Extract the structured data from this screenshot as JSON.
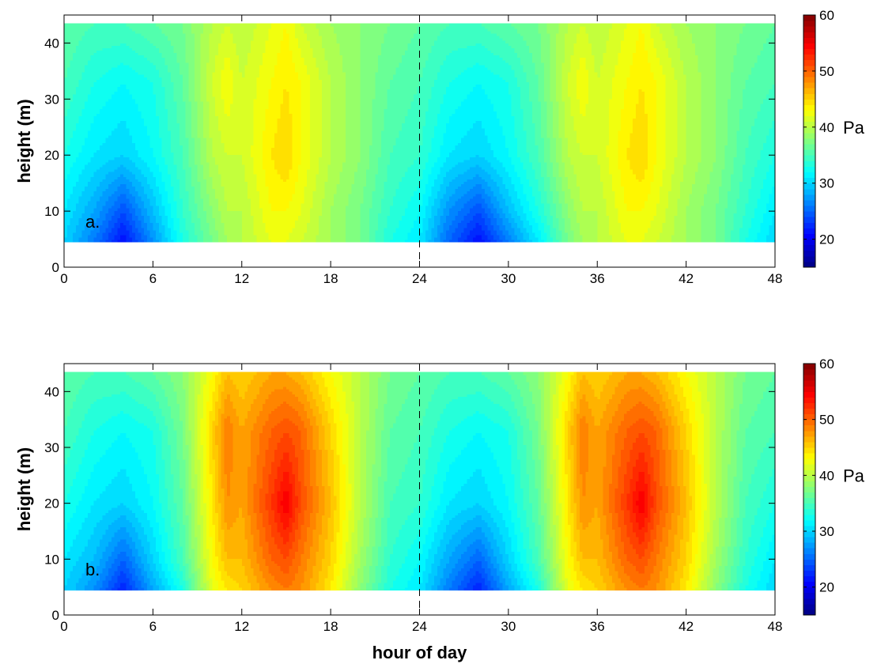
{
  "chart_data": [
    {
      "type": "heatmap",
      "panel_label": "a.",
      "ylabel": "height (m)",
      "xlabel": "",
      "xlim": [
        0,
        48
      ],
      "ylim": [
        0,
        45
      ],
      "xticks": [
        0,
        6,
        12,
        18,
        24,
        30,
        36,
        42,
        48
      ],
      "yticks": [
        0,
        10,
        20,
        30,
        40
      ],
      "x_hours": [
        0,
        2,
        4,
        6,
        8,
        10,
        11,
        12,
        14,
        15,
        16,
        18,
        20,
        22,
        24,
        26,
        28,
        30,
        32,
        34,
        35,
        36,
        38,
        39,
        40,
        42,
        44,
        46,
        48
      ],
      "heights": [
        4.5,
        10,
        20,
        33,
        43.5
      ],
      "values": [
        [
          30,
          26,
          21,
          27,
          33,
          37,
          39,
          40,
          42,
          42,
          41,
          39,
          37,
          33,
          31,
          25,
          21,
          26,
          31,
          37,
          39,
          40,
          42,
          42,
          41,
          39,
          37,
          33,
          30
        ],
        [
          31,
          28,
          24,
          29,
          34,
          38,
          40,
          40,
          43,
          43,
          42,
          39,
          37,
          34,
          32,
          27,
          24,
          29,
          33,
          38,
          40,
          40,
          43,
          43,
          42,
          39,
          37,
          34,
          31
        ],
        [
          33,
          31,
          30,
          32,
          35,
          40,
          41,
          41,
          44,
          45,
          43,
          40,
          38,
          35,
          34,
          31,
          30,
          32,
          35,
          40,
          41,
          41,
          44,
          45,
          43,
          40,
          38,
          35,
          33
        ],
        [
          35,
          33,
          32,
          33,
          36,
          41,
          43,
          41,
          43,
          44,
          43,
          40,
          38,
          36,
          35,
          33,
          32,
          33,
          36,
          41,
          43,
          41,
          43,
          44,
          43,
          40,
          38,
          36,
          35
        ],
        [
          36,
          35,
          35,
          36,
          37,
          40,
          41,
          40,
          42,
          43,
          41,
          39,
          38,
          37,
          36,
          35,
          35,
          36,
          37,
          40,
          41,
          40,
          42,
          43,
          41,
          39,
          38,
          37,
          36
        ]
      ],
      "dashed_line_x": 24
    },
    {
      "type": "heatmap",
      "panel_label": "b.",
      "ylabel": "height (m)",
      "xlabel": "hour of day",
      "xlim": [
        0,
        48
      ],
      "ylim": [
        0,
        45
      ],
      "xticks": [
        0,
        6,
        12,
        18,
        24,
        30,
        36,
        42,
        48
      ],
      "yticks": [
        0,
        10,
        20,
        30,
        40
      ],
      "x_hours": [
        0,
        2,
        4,
        6,
        8,
        10,
        11,
        12,
        14,
        15,
        16,
        18,
        20,
        22,
        24,
        26,
        28,
        30,
        32,
        34,
        35,
        36,
        38,
        39,
        40,
        42,
        44,
        46,
        48
      ],
      "heights": [
        4.5,
        10,
        20,
        33,
        43.5
      ],
      "values": [
        [
          30,
          27,
          22,
          28,
          33,
          42,
          44,
          45,
          48,
          49,
          48,
          44,
          38,
          33,
          31,
          26,
          22,
          28,
          33,
          42,
          44,
          45,
          48,
          49,
          48,
          44,
          38,
          33,
          30
        ],
        [
          31,
          29,
          25,
          30,
          35,
          43,
          46,
          46,
          50,
          51,
          49,
          45,
          39,
          34,
          32,
          28,
          25,
          30,
          35,
          43,
          46,
          46,
          50,
          51,
          49,
          45,
          39,
          34,
          31
        ],
        [
          33,
          31,
          30,
          32,
          36,
          44,
          48,
          47,
          52,
          55,
          51,
          46,
          40,
          35,
          34,
          31,
          30,
          32,
          36,
          44,
          48,
          47,
          52,
          55,
          51,
          46,
          40,
          35,
          33
        ],
        [
          35,
          33,
          32,
          33,
          37,
          45,
          49,
          47,
          50,
          51,
          50,
          45,
          40,
          36,
          35,
          33,
          32,
          33,
          37,
          45,
          49,
          47,
          50,
          51,
          50,
          45,
          40,
          36,
          35
        ],
        [
          36,
          35,
          35,
          36,
          38,
          43,
          46,
          45,
          47,
          47,
          46,
          43,
          40,
          37,
          36,
          35,
          35,
          36,
          38,
          43,
          46,
          45,
          47,
          47,
          46,
          43,
          40,
          37,
          36
        ]
      ],
      "dashed_line_x": 24
    }
  ],
  "colorbar": {
    "range": [
      15,
      60
    ],
    "ticks": [
      20,
      30,
      40,
      50,
      60
    ],
    "unit": "Pa",
    "colormap": "jet"
  }
}
